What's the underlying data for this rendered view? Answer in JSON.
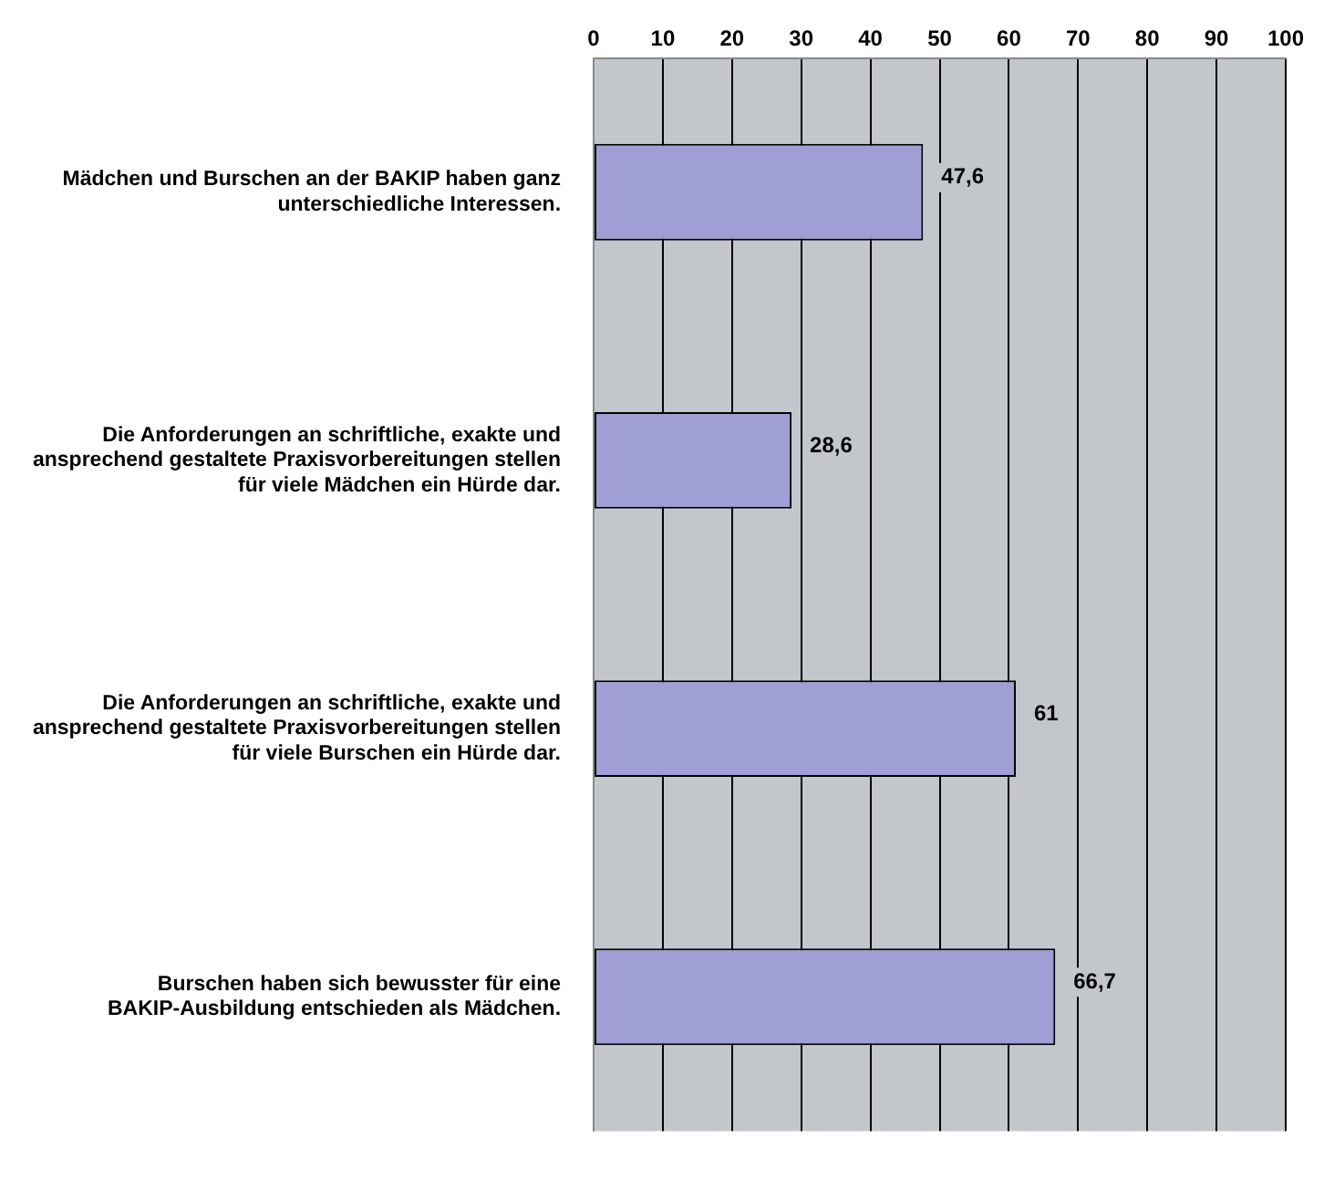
{
  "chart_data": {
    "type": "bar",
    "orientation": "horizontal",
    "categories": [
      "Mädchen und Burschen an der BAKIP haben ganz unterschiedliche Interessen.",
      "Die Anforderungen an schriftliche, exakte und ansprechend gestaltete Praxisvorbereitungen stellen für viele Mädchen ein Hürde dar.",
      "Die Anforderungen an schriftliche, exakte und ansprechend gestaltete Praxisvorbereitungen stellen für viele Burschen ein Hürde dar.",
      "Burschen haben sich bewusster für eine BAKIP-Ausbildung entschieden als Mädchen."
    ],
    "values": [
      47.6,
      28.6,
      61,
      66.7
    ],
    "value_labels": [
      "47,6",
      "28,6",
      "61",
      "66,7"
    ],
    "color": "#9f9fd6",
    "xlim": [
      0,
      100
    ],
    "xticks": [
      0,
      10,
      20,
      30,
      40,
      50,
      60,
      70,
      80,
      90,
      100
    ],
    "grid": "x",
    "legend": false
  }
}
